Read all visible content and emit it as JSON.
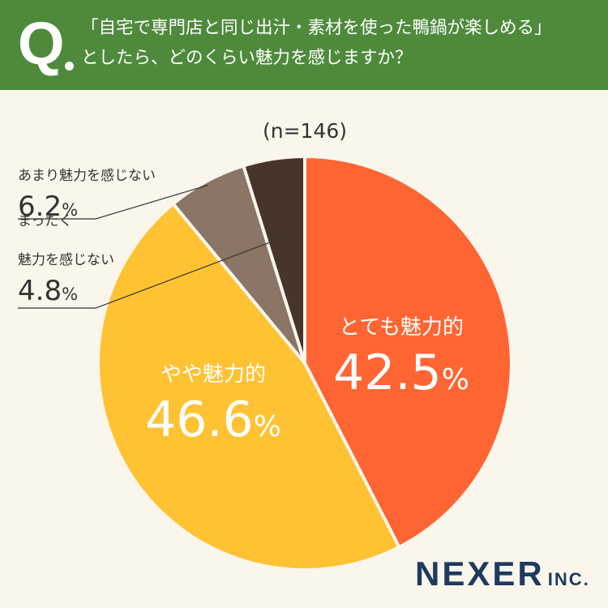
{
  "question": {
    "mark": "Q",
    "line1": "「自宅で専門店と同じ出汁・素材を使った鴨鍋が楽しめる」",
    "line2": "としたら、どのくらい魅力を感じますか？"
  },
  "colors": {
    "header_bg": "#4f8a3c",
    "background": "#fbf6ec",
    "brand": "#1f3a5f"
  },
  "brand": {
    "name": "NEXER",
    "suffix": "INC."
  },
  "chart_data": {
    "type": "pie",
    "sample": "(n=146)",
    "unit": "%",
    "start": "12 o'clock",
    "direction": "clockwise",
    "slices": [
      {
        "label": "とても魅力的",
        "value": 42.5,
        "value_text": "42.5",
        "color": "#ff6533",
        "label_placement": "inside"
      },
      {
        "label": "やや魅力的",
        "value": 46.6,
        "value_text": "46.6",
        "color": "#ffc233",
        "label_placement": "inside"
      },
      {
        "label": "あまり魅力を感じない",
        "value": 6.2,
        "value_text": "6.2",
        "color": "#8a7566",
        "label_placement": "outside-left"
      },
      {
        "label": "まったく\n魅力を感じない",
        "value": 4.8,
        "value_text": "4.8",
        "color": "#48352a",
        "label_placement": "outside-left"
      }
    ]
  }
}
